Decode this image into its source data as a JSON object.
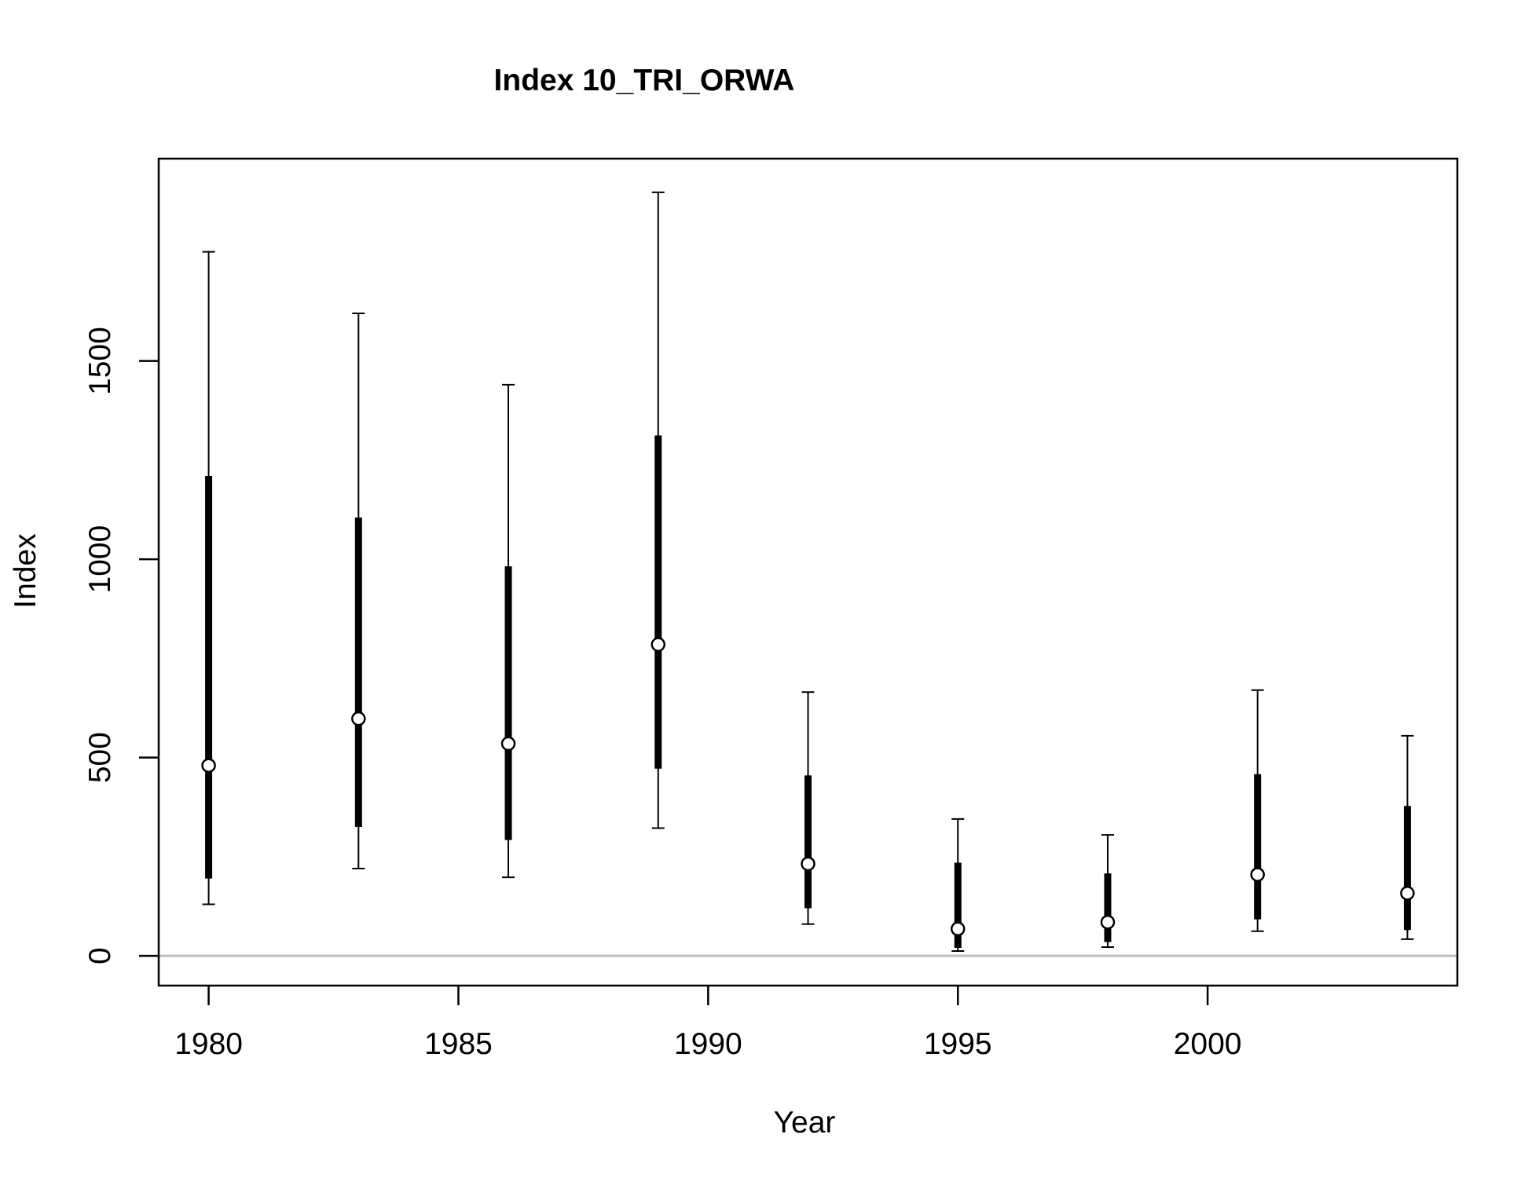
{
  "chart_data": {
    "type": "scatter",
    "title": "Index 10_TRI_ORWA",
    "xlabel": "Year",
    "ylabel": "Index",
    "xlim": [
      1979,
      2005
    ],
    "ylim": [
      -75,
      2010
    ],
    "xticks": [
      1980,
      1985,
      1990,
      1995,
      2000
    ],
    "yticks": [
      0,
      500,
      1000,
      1500
    ],
    "xtick_labels": [
      "1980",
      "1985",
      "1990",
      "1995",
      "2000"
    ],
    "ytick_labels": [
      "0",
      "500",
      "1000",
      "1500"
    ],
    "reference_line": {
      "y": 0,
      "color": "#bebebe"
    },
    "grid": false,
    "legend": "none",
    "points": [
      {
        "x": 1980,
        "y": 480,
        "inner_low": 195,
        "inner_high": 1210,
        "outer_low": 130,
        "outer_high": 1775
      },
      {
        "x": 1983,
        "y": 598,
        "inner_low": 325,
        "inner_high": 1105,
        "outer_low": 220,
        "outer_high": 1620
      },
      {
        "x": 1986,
        "y": 535,
        "inner_low": 292,
        "inner_high": 982,
        "outer_low": 198,
        "outer_high": 1440
      },
      {
        "x": 1989,
        "y": 785,
        "inner_low": 472,
        "inner_high": 1312,
        "outer_low": 322,
        "outer_high": 1925
      },
      {
        "x": 1992,
        "y": 232,
        "inner_low": 120,
        "inner_high": 455,
        "outer_low": 80,
        "outer_high": 665
      },
      {
        "x": 1995,
        "y": 68,
        "inner_low": 20,
        "inner_high": 235,
        "outer_low": 12,
        "outer_high": 345
      },
      {
        "x": 1998,
        "y": 85,
        "inner_low": 35,
        "inner_high": 208,
        "outer_low": 22,
        "outer_high": 305
      },
      {
        "x": 2001,
        "y": 205,
        "inner_low": 92,
        "inner_high": 458,
        "outer_low": 62,
        "outer_high": 670
      },
      {
        "x": 2004,
        "y": 158,
        "inner_low": 65,
        "inner_high": 378,
        "outer_low": 42,
        "outer_high": 555
      }
    ]
  }
}
